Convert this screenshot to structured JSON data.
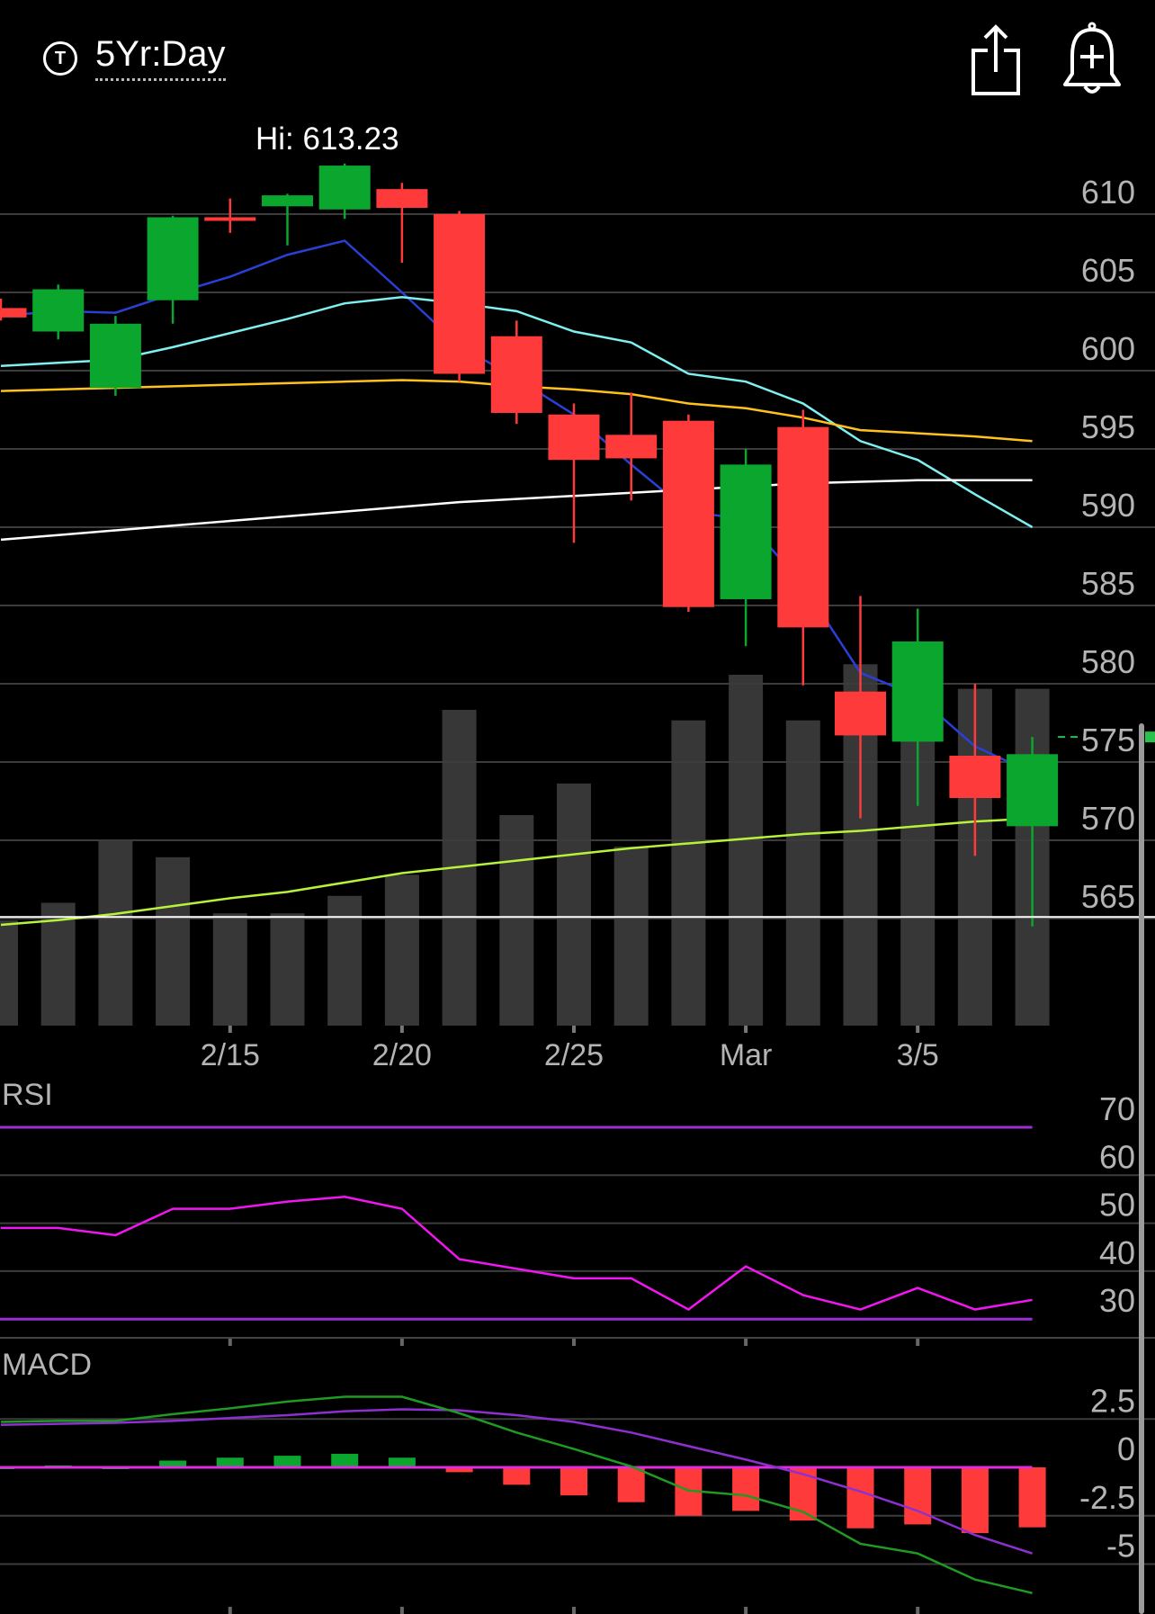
{
  "header": {
    "ticker_icon_label": "T",
    "timeframe": "5Yr:Day",
    "share_icon": "share-icon",
    "alert_icon": "bell-plus-icon",
    "hi_label": "Hi: 613.23"
  },
  "chart_data": [
    {
      "type": "candlestick",
      "xlabels": [
        "2/15",
        "2/20",
        "2/25",
        "Mar",
        "3/5"
      ],
      "ylim": [
        562,
        614
      ],
      "yticks": [
        610,
        605,
        600,
        595,
        590,
        585,
        580,
        575,
        570,
        565
      ],
      "grid": true,
      "candles": [
        {
          "open": 604.0,
          "high": 604.6,
          "low": 603.2,
          "close": 603.4
        },
        {
          "open": 602.5,
          "high": 605.5,
          "low": 602.0,
          "close": 605.2
        },
        {
          "open": 598.9,
          "high": 603.5,
          "low": 598.4,
          "close": 603.0
        },
        {
          "open": 604.5,
          "high": 609.9,
          "low": 603.0,
          "close": 609.8
        },
        {
          "open": 609.8,
          "high": 611.0,
          "low": 608.8,
          "close": 609.6
        },
        {
          "open": 610.5,
          "high": 611.3,
          "low": 608.0,
          "close": 611.2
        },
        {
          "open": 610.3,
          "high": 613.23,
          "low": 609.7,
          "close": 613.1
        },
        {
          "open": 611.6,
          "high": 612.0,
          "low": 606.9,
          "close": 610.4
        },
        {
          "open": 610.0,
          "high": 610.2,
          "low": 599.3,
          "close": 599.8
        },
        {
          "open": 602.2,
          "high": 603.2,
          "low": 596.6,
          "close": 597.3
        },
        {
          "open": 597.2,
          "high": 597.9,
          "low": 589.0,
          "close": 594.3
        },
        {
          "open": 595.9,
          "high": 598.6,
          "low": 591.7,
          "close": 594.4
        },
        {
          "open": 596.8,
          "high": 597.2,
          "low": 584.6,
          "close": 584.9
        },
        {
          "open": 585.4,
          "high": 595.0,
          "low": 582.4,
          "close": 594.0
        },
        {
          "open": 596.4,
          "high": 597.5,
          "low": 579.9,
          "close": 583.6
        },
        {
          "open": 579.5,
          "high": 585.6,
          "low": 571.4,
          "close": 576.7
        },
        {
          "open": 576.3,
          "high": 584.8,
          "low": 572.2,
          "close": 582.7
        },
        {
          "open": 575.4,
          "high": 580.0,
          "low": 569.0,
          "close": 572.7
        },
        {
          "open": 570.9,
          "high": 576.6,
          "low": 564.5,
          "close": 575.5
        }
      ],
      "volume_relative": [
        0.3,
        0.35,
        0.53,
        0.48,
        0.32,
        0.32,
        0.37,
        0.43,
        0.9,
        0.6,
        0.69,
        0.51,
        0.87,
        1.0,
        0.87,
        1.03,
        0.96,
        0.96,
        0.96
      ],
      "series": [
        {
          "color": "#2a3fd6",
          "values": [
            603.5,
            603.8,
            603.7,
            604.9,
            606.0,
            607.4,
            608.3,
            605.0,
            601.6,
            599.5,
            597.2,
            594.0,
            591.0,
            590.5,
            586.3,
            580.7,
            579.2,
            576.0,
            574.3
          ]
        },
        {
          "color": "#7ff0f0",
          "values": [
            600.3,
            600.5,
            600.7,
            601.5,
            602.4,
            603.3,
            604.3,
            604.7,
            604.3,
            603.8,
            602.5,
            601.8,
            599.8,
            599.3,
            597.9,
            595.5,
            594.3,
            592.1,
            590.0
          ]
        },
        {
          "color": "#ffc21c",
          "values": [
            598.7,
            598.8,
            598.9,
            599.0,
            599.1,
            599.2,
            599.3,
            599.4,
            599.3,
            599.0,
            598.8,
            598.5,
            597.9,
            597.6,
            597.0,
            596.2,
            596.0,
            595.8,
            595.5
          ]
        },
        {
          "color": "#ffffff",
          "values": [
            589.2,
            589.5,
            589.8,
            590.1,
            590.4,
            590.7,
            591.0,
            591.3,
            591.6,
            591.8,
            592.0,
            592.2,
            592.4,
            592.6,
            592.8,
            592.9,
            593.0,
            593.0,
            593.0
          ]
        },
        {
          "color": "#b7f23b",
          "values": [
            564.6,
            564.9,
            565.3,
            565.8,
            566.3,
            566.7,
            567.3,
            567.9,
            568.3,
            568.7,
            569.1,
            569.5,
            569.8,
            570.1,
            570.4,
            570.6,
            570.9,
            571.2,
            571.4
          ]
        }
      ],
      "hlines": [
        {
          "value": 576.6,
          "color": "#29c24c",
          "style": "dashed"
        },
        {
          "value": 565.1,
          "color": "#ffffff",
          "style": "solid"
        }
      ]
    },
    {
      "type": "line",
      "title": "RSI",
      "ylim": [
        25,
        75
      ],
      "yticks": [
        70,
        60,
        50,
        40,
        30
      ],
      "bands": [
        70,
        30
      ],
      "series": [
        {
          "color": "#f016f0",
          "values": [
            49,
            49,
            47.5,
            53,
            53,
            54.5,
            55.5,
            53,
            42.5,
            40.5,
            38.5,
            38.5,
            32,
            41,
            35,
            32,
            36.5,
            32,
            34
          ]
        }
      ]
    },
    {
      "type": "macd",
      "title": "MACD",
      "ylim": [
        -8,
        5
      ],
      "yticks": [
        2.5,
        0,
        -2.5,
        -5
      ],
      "macd_line": {
        "color": "#1f9a22",
        "values": [
          2.35,
          2.4,
          2.4,
          2.75,
          3.05,
          3.4,
          3.65,
          3.65,
          2.8,
          1.8,
          0.95,
          0.05,
          -1.2,
          -1.45,
          -2.3,
          -3.95,
          -4.45,
          -5.8,
          -6.5
        ]
      },
      "signal_line": {
        "color": "#8e2fd0",
        "values": [
          2.2,
          2.25,
          2.3,
          2.4,
          2.55,
          2.7,
          2.9,
          3.0,
          2.95,
          2.7,
          2.35,
          1.8,
          1.1,
          0.4,
          -0.35,
          -1.25,
          -2.25,
          -3.5,
          -4.45
        ]
      },
      "histogram": [
        0.0,
        0.1,
        0.0,
        0.35,
        0.5,
        0.6,
        0.7,
        0.5,
        -0.25,
        -0.9,
        -1.45,
        -1.8,
        -2.5,
        -2.25,
        -2.75,
        -3.15,
        -2.95,
        -3.4,
        -3.1
      ],
      "zero_line_color": "#e02be0"
    }
  ]
}
